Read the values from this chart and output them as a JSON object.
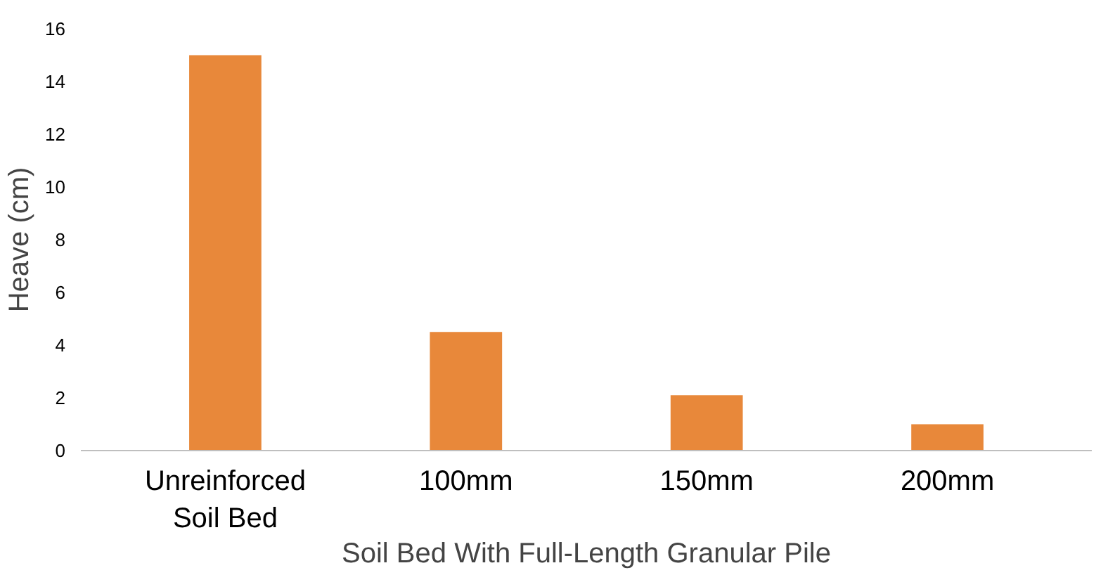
{
  "chart_data": {
    "type": "bar",
    "ylabel": "Heave (cm)",
    "xlabel": "Soil Bed With Full-Length Granular Pile",
    "categories": [
      "Unreinforced\nSoil Bed",
      "100mm",
      "150mm",
      "200mm"
    ],
    "values": [
      15,
      4.5,
      2.1,
      1.0
    ],
    "color": "#e8883a",
    "ylim": [
      0,
      16
    ],
    "yticks": [
      0,
      2,
      4,
      6,
      8,
      10,
      12,
      14,
      16
    ],
    "grid": false
  }
}
